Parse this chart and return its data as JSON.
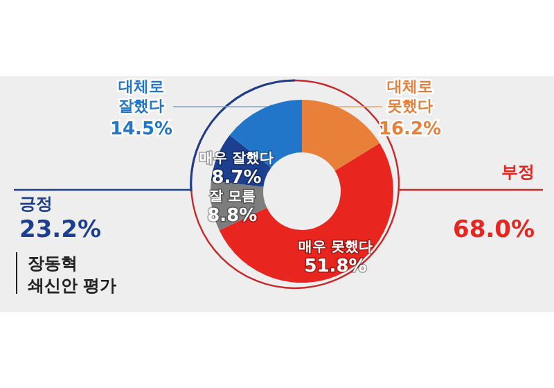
{
  "chart_data": {
    "type": "donut",
    "title": "장동혁 쇄신안 평가",
    "categories": [
      "대체로 못했다",
      "매우 못했다",
      "잘 모름",
      "매우 잘했다",
      "대체로 잘했다"
    ],
    "values": [
      16.2,
      51.8,
      8.8,
      8.7,
      14.5
    ],
    "value_labels": [
      "16.2%",
      "51.8%",
      "8.8%",
      "8.7%",
      "14.5%"
    ],
    "colors": [
      "#e8803a",
      "#e8251f",
      "#7d7d7d",
      "#1d3f8f",
      "#2176c9"
    ],
    "annotations": [
      "긍정",
      "23.2%",
      "부정",
      "68.0%"
    ],
    "legend": false
  }
}
